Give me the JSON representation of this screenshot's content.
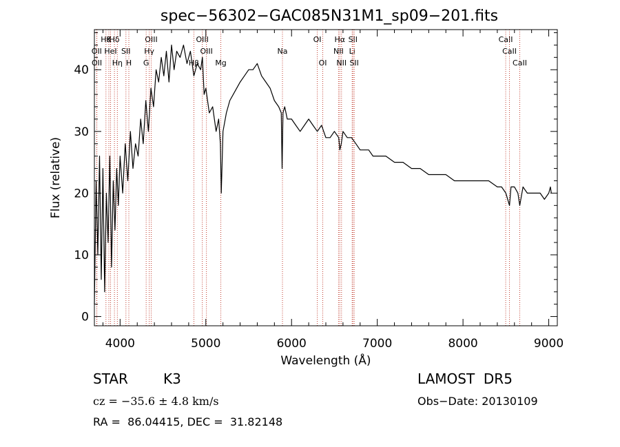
{
  "chart_data": {
    "type": "line",
    "title": "spec−56302−GAC085N31M1_sp09−201.fits",
    "xlabel": "Wavelength (Å)",
    "ylabel": "Flux (relative)",
    "xlim": [
      3700,
      9100
    ],
    "ylim": [
      -1.5,
      46.5
    ],
    "xticks": [
      4000,
      5000,
      6000,
      7000,
      8000,
      9000
    ],
    "yticks": [
      0,
      10,
      20,
      30,
      40
    ],
    "grid": false,
    "series": [
      {
        "x": [
          3700,
          3720,
          3740,
          3760,
          3780,
          3800,
          3820,
          3840,
          3860,
          3880,
          3900,
          3920,
          3940,
          3960,
          3980,
          4000,
          4030,
          4060,
          4090,
          4120,
          4150,
          4180,
          4210,
          4240,
          4270,
          4300,
          4330,
          4360,
          4390,
          4420,
          4450,
          4480,
          4510,
          4540,
          4570,
          4600,
          4630,
          4660,
          4700,
          4740,
          4780,
          4820,
          4860,
          4900,
          4940,
          4960,
          4980,
          5000,
          5040,
          5080,
          5120,
          5150,
          5170,
          5180,
          5200,
          5240,
          5280,
          5320,
          5360,
          5400,
          5450,
          5500,
          5550,
          5600,
          5650,
          5700,
          5750,
          5800,
          5850,
          5880,
          5890,
          5900,
          5920,
          5950,
          6000,
          6050,
          6100,
          6150,
          6200,
          6250,
          6300,
          6350,
          6400,
          6450,
          6500,
          6550,
          6563,
          6580,
          6600,
          6650,
          6700,
          6750,
          6800,
          6850,
          6900,
          6950,
          7000,
          7100,
          7200,
          7300,
          7400,
          7500,
          7600,
          7700,
          7800,
          7900,
          8000,
          8100,
          8200,
          8300,
          8400,
          8450,
          8500,
          8542,
          8560,
          8600,
          8640,
          8662,
          8700,
          8750,
          8800,
          8850,
          8900,
          8950,
          9000,
          9020,
          9030
        ],
        "y": [
          2,
          22,
          10,
          26,
          6,
          24,
          4,
          20,
          12,
          26,
          8,
          22,
          14,
          24,
          18,
          26,
          20,
          28,
          22,
          30,
          24,
          28,
          26,
          32,
          28,
          35,
          30,
          37,
          34,
          40,
          38,
          42,
          39,
          43,
          38,
          44,
          40,
          43,
          42,
          44,
          41,
          43,
          39,
          41,
          40,
          42,
          36,
          37,
          33,
          34,
          30,
          32,
          28,
          20,
          30,
          33,
          35,
          36,
          37,
          38,
          39,
          40,
          40,
          41,
          39,
          38,
          37,
          35,
          34,
          33,
          24,
          33,
          34,
          32,
          32,
          31,
          30,
          31,
          32,
          31,
          30,
          31,
          29,
          29,
          30,
          29,
          27,
          28,
          30,
          29,
          29,
          28,
          27,
          27,
          27,
          26,
          26,
          26,
          25,
          25,
          24,
          24,
          23,
          23,
          23,
          22,
          22,
          22,
          22,
          22,
          21,
          21,
          20,
          18,
          21,
          21,
          20,
          18,
          21,
          20,
          20,
          20,
          20,
          19,
          20,
          21,
          20
        ]
      }
    ],
    "line_markers": [
      {
        "x": 3835,
        "label": "Hθ",
        "row": 1
      },
      {
        "x": 3869,
        "label": "K",
        "row": 1
      },
      {
        "x": 3934,
        "label": "Hδ",
        "row": 1
      },
      {
        "x": 3968,
        "label": "Hη",
        "row": 3
      },
      {
        "x": 3727,
        "label": "OII",
        "row": 2
      },
      {
        "x": 3889,
        "label": "HeI",
        "row": 2
      },
      {
        "x": 4068,
        "label": "SII",
        "row": 2
      },
      {
        "x": 3729,
        "label": "OII",
        "row": 3
      },
      {
        "x": 4102,
        "label": "H",
        "row": 3
      },
      {
        "x": 4340,
        "label": "Hγ",
        "row": 2
      },
      {
        "x": 4363,
        "label": "OIII",
        "row": 1
      },
      {
        "x": 4304,
        "label": "G",
        "row": 3
      },
      {
        "x": 4861,
        "label": "Hβ",
        "row": 3
      },
      {
        "x": 4959,
        "label": "OIII",
        "row": 1
      },
      {
        "x": 5007,
        "label": "OIII",
        "row": 2
      },
      {
        "x": 5175,
        "label": "Mg",
        "row": 3
      },
      {
        "x": 5894,
        "label": "Na",
        "row": 2
      },
      {
        "x": 6300,
        "label": "OI",
        "row": 1
      },
      {
        "x": 6364,
        "label": "OI",
        "row": 3
      },
      {
        "x": 6563,
        "label": "Hα",
        "row": 1
      },
      {
        "x": 6548,
        "label": "NII",
        "row": 2
      },
      {
        "x": 6583,
        "label": "NII",
        "row": 3
      },
      {
        "x": 6707,
        "label": "Li",
        "row": 2
      },
      {
        "x": 6716,
        "label": "SII",
        "row": 1
      },
      {
        "x": 6731,
        "label": "SII",
        "row": 3
      },
      {
        "x": 8498,
        "label": "CaII",
        "row": 1
      },
      {
        "x": 8542,
        "label": "CaII",
        "row": 2
      },
      {
        "x": 8662,
        "label": "CaII",
        "row": 3
      }
    ]
  },
  "info": {
    "object_class": "STAR",
    "subclass": "K3",
    "survey": "LAMOST  DR5",
    "cz": "cz = −35.6 ± 4.8 km/s",
    "obs_date": "Obs−Date: 20130109",
    "coords": "RA =  86.04415, DEC =  31.82148"
  },
  "colors": {
    "axes": "#000000",
    "spectrum": "#000000",
    "line_markers": "#c0392b"
  }
}
